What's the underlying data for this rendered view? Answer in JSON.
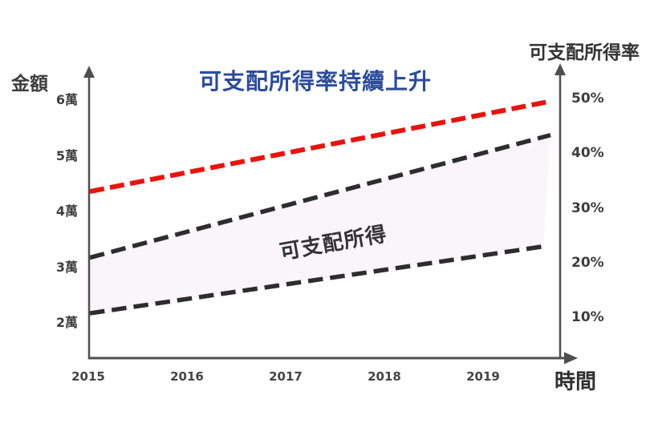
{
  "chart_data": {
    "type": "line",
    "title": "可支配所得率持續上升",
    "title_color": "#2b4c9c",
    "x": {
      "label": "時間",
      "ticks": [
        "2015",
        "2016",
        "2017",
        "2018",
        "2019"
      ]
    },
    "left_axis": {
      "label": "金額",
      "ticks": [
        "2萬",
        "3萬",
        "4萬",
        "5萬",
        "6萬"
      ],
      "tick_values": [
        2,
        3,
        4,
        5,
        6
      ]
    },
    "right_axis": {
      "label": "可支配所得率",
      "ticks": [
        "10%",
        "20%",
        "30%",
        "40%",
        "50%"
      ],
      "tick_values": [
        10,
        20,
        30,
        40,
        50
      ]
    },
    "series": [
      {
        "name": "disposable-income-rate-line",
        "axis": "right",
        "style": "dashed",
        "color": "#e8140c",
        "x_range_years": [
          2015,
          2019.7
        ],
        "values_pct": [
          33,
          49.5
        ]
      },
      {
        "name": "disposable-income-upper-line",
        "axis": "left",
        "style": "dashed",
        "color": "#2d2d2d",
        "x_range_years": [
          2015,
          2019.7
        ],
        "values_wan": [
          3.1,
          5.3
        ]
      },
      {
        "name": "disposable-income-lower-line",
        "axis": "left",
        "style": "dashed",
        "color": "#2d2d2d",
        "x_range_years": [
          2015,
          2019.7
        ],
        "values_wan": [
          2.1,
          3.3
        ]
      }
    ],
    "band": {
      "label": "可支配所得",
      "fill": "#f9f5f9"
    },
    "legend": "none",
    "grid": false
  }
}
